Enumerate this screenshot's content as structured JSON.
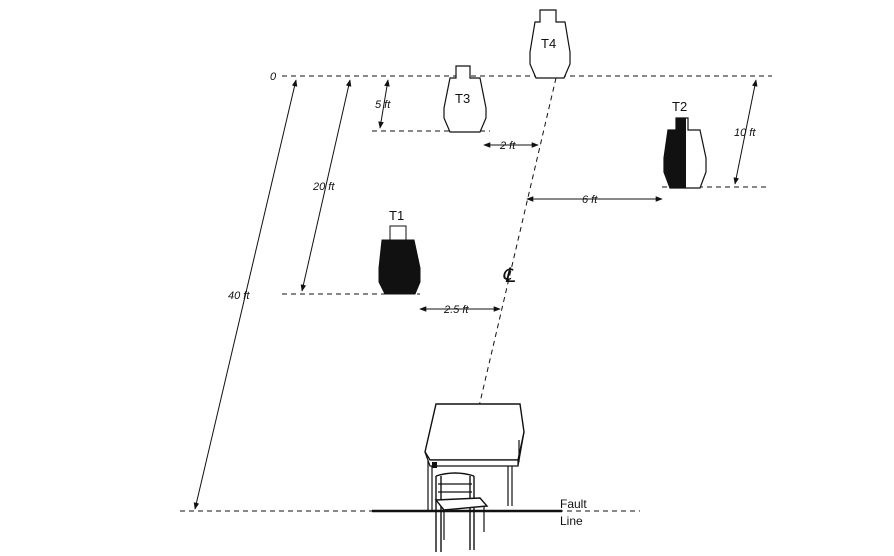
{
  "diagram": {
    "zero_label": "0",
    "targets": {
      "t1": "T1",
      "t2": "T2",
      "t3": "T3",
      "t4": "T4"
    },
    "dimensions": {
      "d5": "5 ft",
      "d2": "2 ft",
      "d10": "10 ft",
      "d6": "6 ft",
      "d20": "20 ft",
      "d25": "2.5 ft",
      "d40": "40 ft"
    },
    "centerline_symbol": "℄",
    "fault_line": {
      "line1": "Fault",
      "line2": "Line"
    }
  }
}
